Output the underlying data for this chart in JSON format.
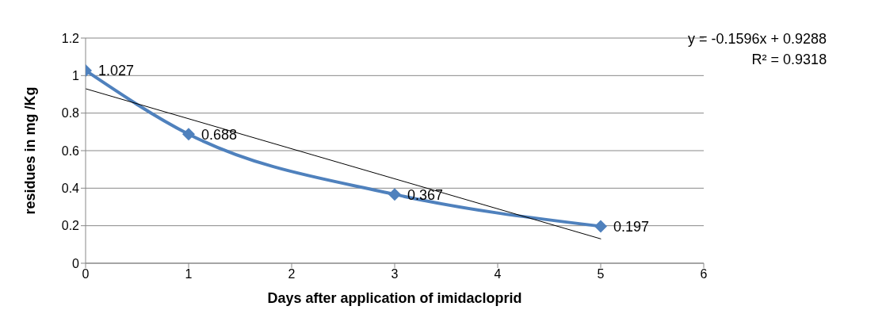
{
  "chart_data": {
    "type": "line",
    "xlabel": "Days after application of imidacloprid",
    "ylabel": "residues in mg /Kg",
    "xlim": [
      0,
      6
    ],
    "xticks": [
      0,
      1,
      2,
      3,
      4,
      5,
      6
    ],
    "ylim": [
      0,
      1.2
    ],
    "yticks": [
      0,
      0.2,
      0.4,
      0.6,
      0.8,
      1,
      1.2
    ],
    "grid": "y",
    "marker": "diamond",
    "series": [
      {
        "color": "#4f81bd",
        "x": [
          0,
          1,
          3,
          5
        ],
        "values": [
          1.027,
          0.688,
          0.367,
          0.197
        ],
        "value_labels": [
          "1.027",
          "0.688",
          "0.367",
          "0.197"
        ]
      },
      {
        "type": "line",
        "color": "#000000",
        "marker": "none",
        "x": [
          0,
          5
        ],
        "values": [
          0.93,
          0.13
        ]
      }
    ],
    "annotations": [
      "y = -0.1596x + 0.9288",
      "R² = 0.9318"
    ]
  }
}
